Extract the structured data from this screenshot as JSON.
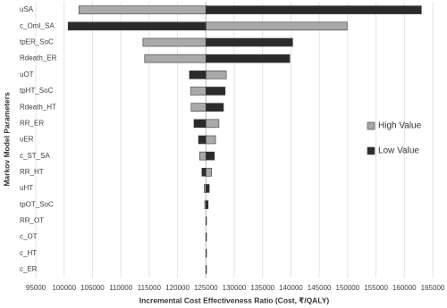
{
  "chart_data": {
    "type": "tornado",
    "x_label": "Incremental Cost Effectiveness Ratio (Cost, ₹/QALY)",
    "y_label": "Markov Model Parameters",
    "categories": [
      "uSA",
      "c_OmI_SA",
      "tpER_SoC",
      "Rdeath_ER",
      "uOT",
      "tpHT_SoC",
      "Rdeath_HT",
      "RR_ER",
      "uER",
      "c_ST_SA",
      "RR_HT",
      "uHT",
      "tpOT_SoC",
      "RR_OT",
      "c_OT",
      "c_HT",
      "c_ER"
    ],
    "base_value": 125000,
    "series": [
      {
        "name": "High Value",
        "color": "#a9a9a9",
        "values": [
          102600,
          149900,
          113900,
          114200,
          128600,
          122300,
          122400,
          127300,
          126700,
          123900,
          126000,
          124700,
          124800,
          125000,
          125000,
          125000,
          125000
        ]
      },
      {
        "name": "Low Value",
        "color": "#2b2b2b",
        "values": [
          163000,
          100700,
          140300,
          139800,
          122100,
          128400,
          128100,
          122900,
          123700,
          126500,
          124300,
          125600,
          125400,
          125000,
          125000,
          125000,
          125000
        ]
      }
    ],
    "xlim": [
      95000,
      165000
    ],
    "xticks": [
      95000,
      100000,
      105000,
      110000,
      115000,
      120000,
      125000,
      130000,
      135000,
      140000,
      145000,
      150000,
      155000,
      160000,
      165000
    ],
    "grid": true,
    "legend": "right"
  }
}
